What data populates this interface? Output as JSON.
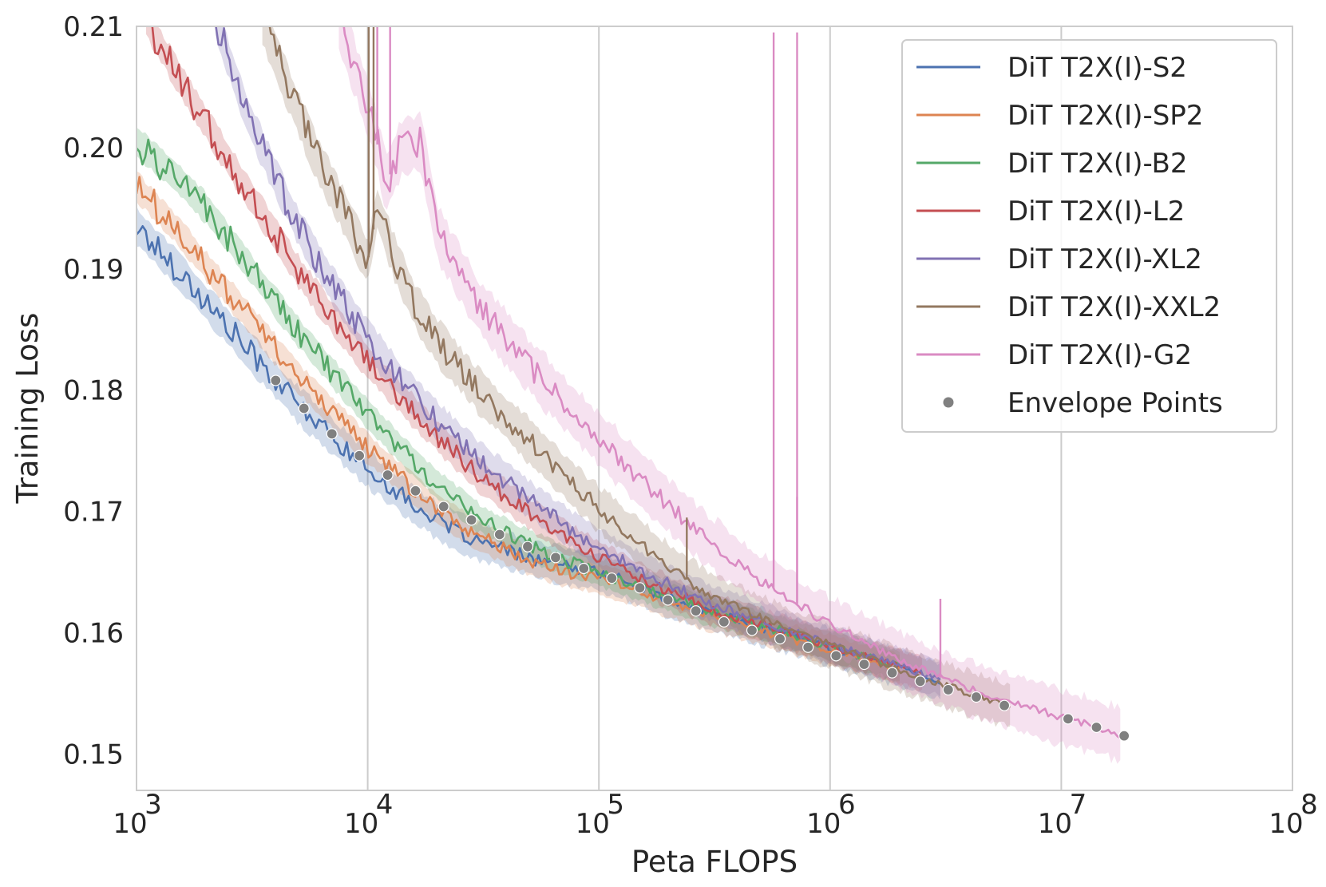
{
  "chart_data": {
    "type": "line",
    "title": "",
    "xlabel": "Peta FLOPS",
    "ylabel": "Training Loss",
    "xscale": "log",
    "xlim": [
      1000,
      100000000
    ],
    "ylim": [
      0.147,
      0.21
    ],
    "grid": true,
    "legend_position": "top-right",
    "x_ticks": [
      {
        "value": 1000,
        "base": "10",
        "exp": "3"
      },
      {
        "value": 10000,
        "base": "10",
        "exp": "4"
      },
      {
        "value": 100000,
        "base": "10",
        "exp": "5"
      },
      {
        "value": 1000000,
        "base": "10",
        "exp": "6"
      },
      {
        "value": 10000000,
        "base": "10",
        "exp": "7"
      },
      {
        "value": 100000000,
        "base": "10",
        "exp": "8"
      }
    ],
    "y_ticks": [
      {
        "value": 0.15,
        "label": "0.15"
      },
      {
        "value": 0.16,
        "label": "0.16"
      },
      {
        "value": 0.17,
        "label": "0.17"
      },
      {
        "value": 0.18,
        "label": "0.18"
      },
      {
        "value": 0.19,
        "label": "0.19"
      },
      {
        "value": 0.2,
        "label": "0.20"
      },
      {
        "value": 0.21,
        "label": "0.21"
      }
    ],
    "series": [
      {
        "name": "DiT T2X(I)-S2",
        "color": "#4c72b0",
        "band": 0.0015,
        "x": [
          1000,
          1500,
          2000,
          3000,
          4000,
          5000,
          7000,
          10000,
          15000,
          20000,
          30000,
          50000,
          70000,
          100000,
          150000,
          200000,
          300000,
          500000,
          700000,
          1000000,
          1500000,
          2000000,
          2500000,
          3000000
        ],
        "y": [
          0.1935,
          0.19,
          0.1872,
          0.1835,
          0.1808,
          0.1788,
          0.1762,
          0.1735,
          0.1709,
          0.1692,
          0.1675,
          0.1662,
          0.1655,
          0.165,
          0.1638,
          0.1628,
          0.1617,
          0.1605,
          0.1597,
          0.1588,
          0.1578,
          0.1571,
          0.1565,
          0.156
        ]
      },
      {
        "name": "DiT T2X(I)-SP2",
        "color": "#dd8452",
        "band": 0.0012,
        "x": [
          1000,
          1500,
          2000,
          3000,
          4000,
          5000,
          7000,
          10000,
          15000,
          20000,
          30000,
          50000,
          70000,
          100000,
          150000,
          200000,
          300000,
          500000,
          700000,
          1000000,
          1500000,
          2000000
        ],
        "y": [
          0.1968,
          0.1932,
          0.1902,
          0.1862,
          0.1833,
          0.181,
          0.1782,
          0.1752,
          0.1722,
          0.1702,
          0.168,
          0.166,
          0.1651,
          0.1644,
          0.1634,
          0.1625,
          0.1614,
          0.1602,
          0.1594,
          0.1586,
          0.1577,
          0.157
        ]
      },
      {
        "name": "DiT T2X(I)-B2",
        "color": "#55a868",
        "band": 0.0012,
        "x": [
          1000,
          1500,
          2000,
          3000,
          4000,
          5000,
          7000,
          10000,
          15000,
          20000,
          30000,
          50000,
          70000,
          100000,
          150000,
          200000,
          300000,
          500000,
          700000,
          1000000,
          1500000,
          2000000
        ],
        "y": [
          0.2005,
          0.1975,
          0.195,
          0.1905,
          0.1872,
          0.1848,
          0.1815,
          0.178,
          0.1745,
          0.1722,
          0.1695,
          0.1672,
          0.166,
          0.165,
          0.1639,
          0.1629,
          0.1618,
          0.1606,
          0.1598,
          0.1589,
          0.1579,
          0.1572
        ]
      },
      {
        "name": "DiT T2X(I)-L2",
        "color": "#c44e52",
        "band": 0.0013,
        "x": [
          1100,
          1500,
          2000,
          3000,
          4000,
          5000,
          7000,
          10000,
          15000,
          20000,
          30000,
          50000,
          70000,
          100000,
          150000,
          200000,
          300000,
          500000,
          700000,
          1000000,
          1500000,
          2000000,
          2500000
        ],
        "y": [
          0.2105,
          0.206,
          0.202,
          0.1965,
          0.1928,
          0.1898,
          0.186,
          0.1823,
          0.1787,
          0.1762,
          0.173,
          0.1698,
          0.168,
          0.1662,
          0.1645,
          0.1634,
          0.162,
          0.1607,
          0.1598,
          0.1589,
          0.1579,
          0.1572,
          0.1566
        ]
      },
      {
        "name": "DiT T2X(I)-XL2",
        "color": "#8172b3",
        "band": 0.0015,
        "x": [
          2200,
          3000,
          4000,
          5000,
          7000,
          10000,
          15000,
          20000,
          30000,
          50000,
          70000,
          100000,
          150000,
          200000,
          300000,
          500000,
          700000,
          1000000,
          1500000,
          2000000,
          3000000
        ],
        "y": [
          0.2105,
          0.2028,
          0.1975,
          0.1935,
          0.1887,
          0.1842,
          0.18,
          0.1775,
          0.1743,
          0.171,
          0.169,
          0.167,
          0.1652,
          0.164,
          0.1625,
          0.161,
          0.16,
          0.159,
          0.158,
          0.1572,
          0.1562
        ]
      },
      {
        "name": "DiT T2X(I)-XXL2",
        "color": "#937860",
        "band": 0.0018,
        "x": [
          3500,
          4500,
          6000,
          8000,
          10000,
          11000,
          13000,
          16000,
          20000,
          30000,
          50000,
          70000,
          100000,
          150000,
          200000,
          300000,
          500000,
          700000,
          1000000,
          1500000,
          2000000,
          3000000,
          4000000,
          6000000
        ],
        "y": [
          0.2105,
          0.205,
          0.1992,
          0.1945,
          0.1905,
          0.195,
          0.191,
          0.187,
          0.184,
          0.18,
          0.1758,
          0.173,
          0.1702,
          0.1675,
          0.1655,
          0.1632,
          0.1612,
          0.16,
          0.159,
          0.1578,
          0.1569,
          0.1558,
          0.155,
          0.154
        ]
      },
      {
        "name": "DiT T2X(I)-G2",
        "color": "#da8bc3",
        "band": 0.0022,
        "x": [
          7500,
          9000,
          10500,
          12000,
          14000,
          17000,
          20000,
          30000,
          50000,
          70000,
          100000,
          150000,
          200000,
          300000,
          500000,
          700000,
          1000000,
          1500000,
          2000000,
          3000000,
          5000000,
          7000000,
          10000000,
          14000000,
          18000000
        ],
        "y": [
          0.2105,
          0.206,
          0.202,
          0.197,
          0.2,
          0.2005,
          0.193,
          0.187,
          0.182,
          0.179,
          0.176,
          0.1727,
          0.1705,
          0.1675,
          0.1643,
          0.1625,
          0.1607,
          0.159,
          0.1578,
          0.1563,
          0.1548,
          0.154,
          0.153,
          0.1523,
          0.1516
        ]
      }
    ],
    "envelope_points": {
      "name": "Envelope Points",
      "color": "#808080",
      "x": [
        4000,
        5300,
        7000,
        9200,
        12200,
        16100,
        21300,
        28100,
        37200,
        49200,
        65000,
        86000,
        113700,
        150300,
        198800,
        262800,
        347500,
        459400,
        607500,
        803100,
        1061800,
        1403900,
        1856200,
        2454100,
        3244600,
        4289800,
        5671700,
        10700000,
        14200000,
        18700000
      ],
      "y": [
        0.1808,
        0.1785,
        0.1764,
        0.1746,
        0.173,
        0.1717,
        0.1704,
        0.1693,
        0.1681,
        0.1671,
        0.1662,
        0.1653,
        0.1645,
        0.1637,
        0.1627,
        0.1618,
        0.1609,
        0.1602,
        0.1595,
        0.1588,
        0.1581,
        0.1574,
        0.1567,
        0.156,
        0.1553,
        0.1547,
        0.154,
        0.1529,
        0.1522,
        0.1515
      ]
    }
  }
}
